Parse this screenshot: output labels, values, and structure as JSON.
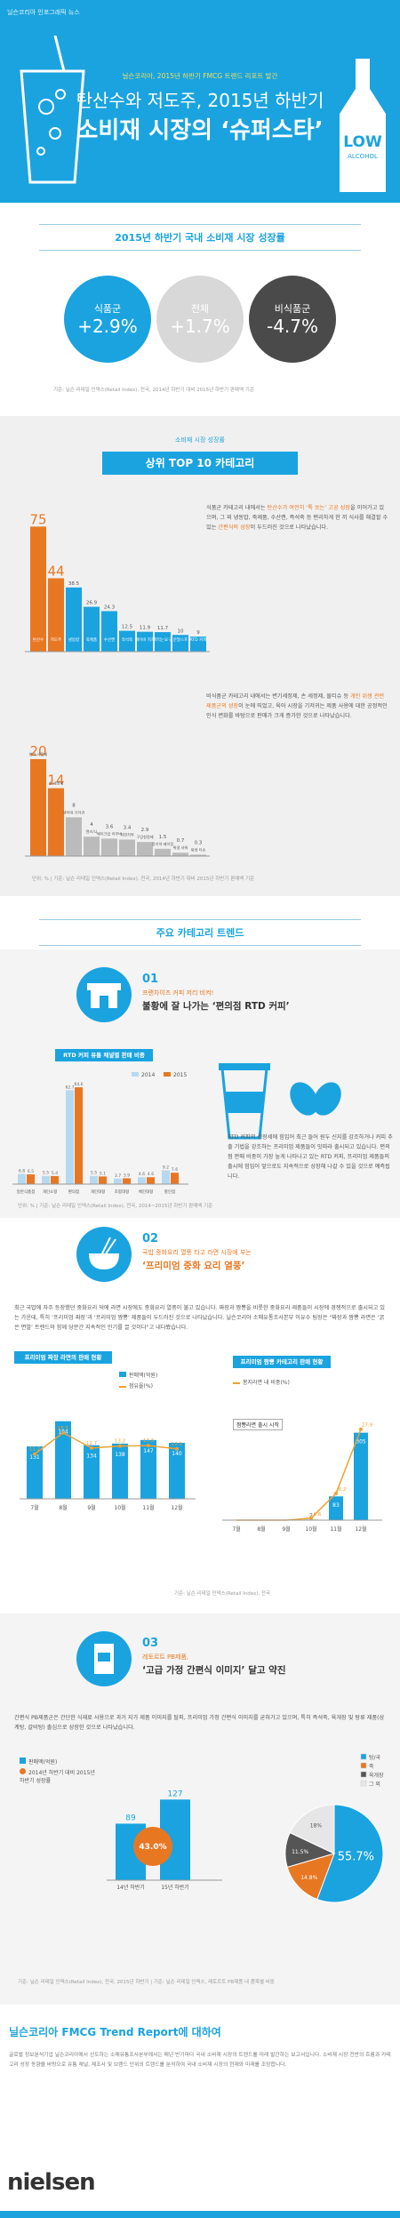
{
  "hero": {
    "kicker": "닐슨코리아 인포그래픽 뉴스",
    "subtitle": "닐슨코리아, 2015년 하반기 FMCG 트렌드 리포트 발간",
    "title_line1": "탄산수와 저도주, 2015년 하반기",
    "title_line2": "소비재 시장의 ‘슈퍼스타’",
    "bottle_low": "LOW",
    "bottle_alcohol": "ALCOHOL"
  },
  "growth": {
    "title": "2015년 하반기 국내 소비재 시장 성장률",
    "circles": [
      {
        "label": "식품군",
        "value": "+2.9%",
        "color": "#1aa3df"
      },
      {
        "label": "전체",
        "value": "+1.7%",
        "color": "#d8d8d8"
      },
      {
        "label": "비식품군",
        "value": "-4.7%",
        "color": "#4a4a4a"
      }
    ],
    "source": "기준: 닐슨 리테일 인덱스(Retail Index), 전국, 2014년 하반기 대비 2015년 하반기 판매액 기준"
  },
  "top10": {
    "ribbon_sub": "소비재 시장 성장률",
    "ribbon": "상위 TOP 10 카테고리",
    "food_text_1": "식품군 카테고리 내에서는 ",
    "food_text_hl": "탄산수가 여전히 ‘톡 쏘는’ 고공 성장",
    "food_text_2": "을 이어가고 있으며, 그 외 냉동밥, 죽제품, 수산캔, 즉석죽 등 편리하게 한 끼 식사를 해결할 수 있는 ",
    "food_text_hl2": "간편식의 성장",
    "food_text_3": "이 두드러진 것으로 나타났습니다.",
    "nonfood_text_1": "비식품군 카테고리 내에서는 변기세정제, 손 세정제, 물티슈 등 ",
    "nonfood_text_hl": "개인 위생 관련 제품군의 성장",
    "nonfood_text_2": "이 눈에 띄었고, 육아 시장을 기저귀는 제품 사용에 대한 공정적인 인식 변화를 바탕으로 판매가 크게 증가한 것으로 나타났습니다.",
    "source": "단위: % | 기준: 닐슨 리테일 인덱스(Retail Index), 전국, 2014년 하반기 대비 2015년 하반기 판매액 기준"
  },
  "chart_data": [
    {
      "type": "bar",
      "title": "",
      "categories": [
        "탄산수",
        "저도주",
        "냉동밥",
        "죽제품",
        "수산캔",
        "즉석죽",
        "베이비 치즈",
        "떠먹는요구",
        "분말스프",
        "RTD 커피"
      ],
      "values": [
        75,
        44,
        38.5,
        26.9,
        24.3,
        12.5,
        11.9,
        11.7,
        10.0,
        9.0
      ],
      "ylabel": "%"
    },
    {
      "type": "bar",
      "title": "",
      "categories": [
        "변기 세정제",
        "손 세정제",
        "생리대 기저귀",
        "렌즈/니",
        "메이크업 리무버",
        "자연치약",
        "구강청정제",
        "정기약 베이킹",
        "위생 샤워",
        "위생 티슈"
      ],
      "values": [
        20,
        14,
        8.0,
        4.0,
        3.6,
        3.4,
        2.9,
        1.5,
        0.7,
        0.3
      ]
    },
    {
      "type": "bar",
      "title": "RTD 커피 유통 채널별 판매 비중",
      "categories": [
        "일반식품점",
        "개인소형",
        "편의점",
        "개인대형",
        "조합대형",
        "체인대형",
        "할인점"
      ],
      "series": [
        {
          "name": "2014",
          "values": [
            6.8,
            5.5,
            62.7,
            5.5,
            3.7,
            4.6,
            9.2
          ]
        },
        {
          "name": "2015",
          "values": [
            6.5,
            5.4,
            64.6,
            5.1,
            3.9,
            4.6,
            7.6
          ]
        }
      ]
    },
    {
      "type": "bar",
      "title": "프리미엄 짜장 카테고리 판매 현황",
      "categories": [
        "7월",
        "8월",
        "9월",
        "10월",
        "11월",
        "12월"
      ],
      "series": [
        {
          "name": "판매액(억원)",
          "values": [
            131,
            194,
            134,
            138,
            147,
            140
          ]
        },
        {
          "name": "점유율(%)",
          "values": [
            11.2,
            16.5,
            12.7,
            13.2,
            13.3,
            12.5
          ]
        }
      ]
    },
    {
      "type": "bar",
      "title": "프리미엄 짬뽕 카테고리 판매 현황",
      "categories": [
        "7월",
        "8월",
        "9월",
        "10월",
        "11월",
        "12월"
      ],
      "series": [
        {
          "name": "판매액(억원)",
          "values": [
            0,
            0,
            0,
            2,
            83,
            305
          ]
        },
        {
          "name": "점유율(%)",
          "values": [
            0,
            0,
            0,
            0.6,
            8.2,
            27.9
          ]
        }
      ]
    },
    {
      "type": "bar",
      "title": "",
      "categories": [
        "14년 하반기",
        "15년 하반기"
      ],
      "values": [
        89,
        127
      ]
    },
    {
      "type": "pie",
      "title": "",
      "categories": [
        "탕/국",
        "죽",
        "육개장",
        "그 외"
      ],
      "values": [
        55.7,
        14.8,
        11.5,
        18.0
      ]
    }
  ],
  "trends": {
    "title": "주요 카테고리 트렌드",
    "t1_num": "01",
    "t1_head": "프랜차이즈 커피 저리 비켜!",
    "t1_title": "불황에 잘 나가는 ‘편의점 RTD 커피’",
    "t1_chart_head": "RTD 커피 유통 채널별 판매 비중",
    "t1_legend_2014": "2014",
    "t1_legend_2015": "2015",
    "t1_body": "RTD 커피의 성장세에 힘입어 최근 들어 원두 신지를 강조하거나 커피 추출 기법을 강조하는 프리미엄 제품들이 잇따라 출시되고 있습니다. 편의점 판매 비중이 가장 높게 나타나고 있는 RTD 커피, 프리미엄 제품들의 출시에 힘입어 앞으로도 지속적으로 성장해 나갈 수 있을 것으로 예측됩니다.",
    "t1_source": "단위: % | 기준: 닐슨 리테일 인덱스(Retail Index), 전국, 2014~2015년 하반기 판매액 기준",
    "t2_num": "02",
    "t2_head": "국밥 중화요리 열풍 타고 라면 시장에 부는",
    "t2_title": "‘프리미엄 중화 요리 열풍’",
    "t2_body": "최근 국밥에 자주 등장했던 중화요리 덕에 라면 시장에도 중화요리 열풍이 불고 있습니다. 짜장과 짬뽕을 비롯한 중화요리 제품들이 시장에 경쟁적으로 출시되고 있는 가운데, 특히 ‘프리미엄 짜장’과 ‘프리미엄 짬뽕’ 제품들이 두드러진 것으로 나타났습니다. 닐슨코리아 소매유통조사본부 이유수 팀장은 \"짜장과 짬뽕 라면은 ‘굵은 면발’ 트렌드와 함께 당분간 지속적인 인기를 끌 것이다\"고 내다봤습니다.",
    "t2_chart1_head": "프리미엄 짜장 라면의 판매 현황",
    "t2_chart2_head": "프리미엄 짬뽕 카테고리 판매 현황",
    "t2_legend_sales": "판매액(억원)",
    "t2_legend_share": "점유율(%)",
    "t2_legend_share2": "봉지라면 내 비중(%)",
    "t2_launch": "짬뽕라면 출시 시작",
    "t2_source": "기준: 닐슨 리테일 인덱스(Retail Index), 전국",
    "t3_num": "03",
    "t3_head": "레토르트 PB제품,",
    "t3_title": "‘고급 가정 간편식 이미지’ 달고 약진",
    "t3_body": "간편식 PB제품군은 간단한 식재료 사용으로 과거 지가 제품 이미지를 탈피, 프리미엄 가정 간편식 이미지를 굳혀가고 있으며, 특히 즉석죽, 육개장 및 탕류 제품(삼계탕, 갈비탕) 출심으로 성장한 것으로 나타났습니다.",
    "t3_legend_sales": "판매액(억원)",
    "t3_legend_growth": "2014년 하반기 대비 2015년 하반기 성장률",
    "t3_growth": "43.0%",
    "t3_pie_legend": [
      "탕/국",
      "죽",
      "육개장",
      "그 외"
    ],
    "t3_source": "기준: 닐슨 리테일 인덱스(Retail Index), 전국, 2015년 하반기 | 기준: 닐슨 리테일 인덱스, 레토르트 PB제품 내 품목별 비중"
  },
  "about": {
    "title": "닐슨코리아 FMCG Trend Report에 대하여",
    "body": "글로벌 정보분석기업 닐슨코리아에서 선도하는 소매유통조사본부에서는 매년 반기마다 국내 소비재 시장의 트렌드를 미래 발간하는 보고서입니다. 소비재 시장 전반의 흐름과 카테고리 성장 동향을 바탕으로 유통 채널, 제조사 및 브랜드 단위의 트렌드를 분석하여 국내 소비재 시장의 현재와 미래를 조망합니다.",
    "logo": "nielsen"
  },
  "colors": {
    "accent": "#1aa3df",
    "orange": "#e87722",
    "dark": "#4a4a4a"
  }
}
